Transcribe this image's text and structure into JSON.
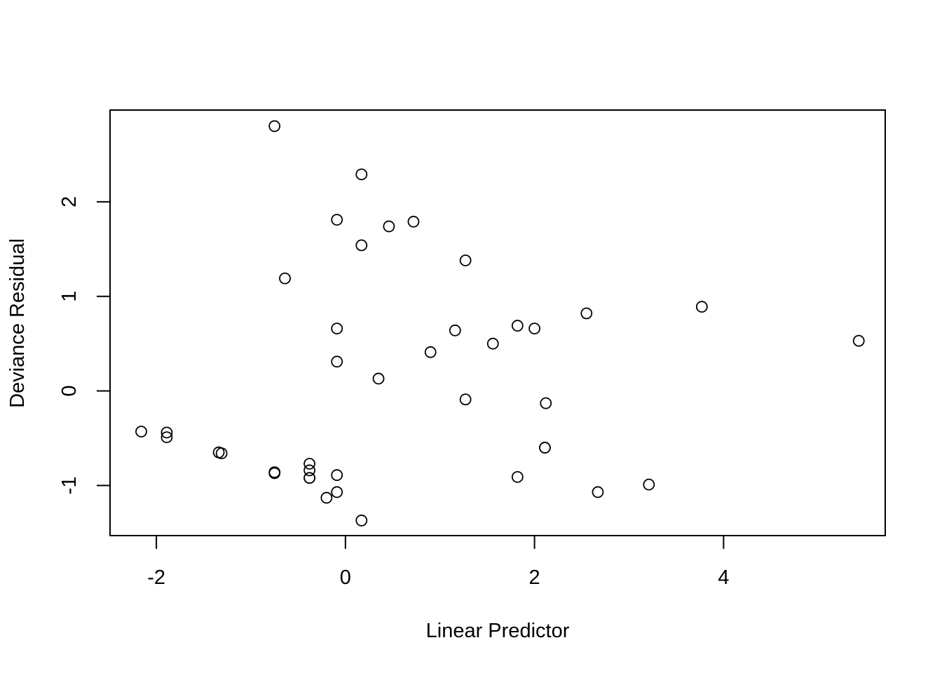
{
  "chart_data": {
    "type": "scatter",
    "title": "",
    "xlabel": "Linear Predictor",
    "ylabel": "Deviance Residual",
    "xlim": [
      -2.49,
      5.71
    ],
    "ylim": [
      -1.53,
      2.97
    ],
    "xticks": [
      {
        "value": -2,
        "label": "-2"
      },
      {
        "value": 0,
        "label": "0"
      },
      {
        "value": 2,
        "label": "2"
      },
      {
        "value": 4,
        "label": "4"
      }
    ],
    "yticks": [
      {
        "value": -1,
        "label": "-1"
      },
      {
        "value": 0,
        "label": "0"
      },
      {
        "value": 1,
        "label": "1"
      },
      {
        "value": 2,
        "label": "2"
      }
    ],
    "grid": false,
    "legend": null,
    "marker": "open-circle",
    "colors": {
      "point": "#000000",
      "axis": "#000000",
      "background": "#ffffff"
    },
    "points": [
      {
        "x": -0.75,
        "y": 2.8
      },
      {
        "x": 0.17,
        "y": 2.29
      },
      {
        "x": -0.09,
        "y": 1.81
      },
      {
        "x": 0.46,
        "y": 1.74
      },
      {
        "x": 0.72,
        "y": 1.79
      },
      {
        "x": 0.17,
        "y": 1.54
      },
      {
        "x": 1.27,
        "y": 1.38
      },
      {
        "x": -0.64,
        "y": 1.19
      },
      {
        "x": 3.77,
        "y": 0.89
      },
      {
        "x": 2.55,
        "y": 0.82
      },
      {
        "x": 1.82,
        "y": 0.69
      },
      {
        "x": 2.0,
        "y": 0.66
      },
      {
        "x": -0.09,
        "y": 0.66
      },
      {
        "x": 1.16,
        "y": 0.64
      },
      {
        "x": 5.43,
        "y": 0.53
      },
      {
        "x": 1.56,
        "y": 0.5
      },
      {
        "x": 0.9,
        "y": 0.41
      },
      {
        "x": -0.09,
        "y": 0.31
      },
      {
        "x": 0.35,
        "y": 0.13
      },
      {
        "x": 1.27,
        "y": -0.09
      },
      {
        "x": 2.12,
        "y": -0.13
      },
      {
        "x": -2.16,
        "y": -0.43
      },
      {
        "x": -1.89,
        "y": -0.44
      },
      {
        "x": -1.89,
        "y": -0.49
      },
      {
        "x": -1.34,
        "y": -0.65
      },
      {
        "x": -1.31,
        "y": -0.66
      },
      {
        "x": 2.11,
        "y": -0.6
      },
      {
        "x": 2.11,
        "y": -0.6
      },
      {
        "x": -0.38,
        "y": -0.77
      },
      {
        "x": -0.38,
        "y": -0.84
      },
      {
        "x": -0.75,
        "y": -0.86
      },
      {
        "x": -0.75,
        "y": -0.87
      },
      {
        "x": -0.38,
        "y": -0.92
      },
      {
        "x": -0.38,
        "y": -0.92
      },
      {
        "x": -0.09,
        "y": -0.89
      },
      {
        "x": 1.82,
        "y": -0.91
      },
      {
        "x": 3.21,
        "y": -0.99
      },
      {
        "x": -0.09,
        "y": -1.07
      },
      {
        "x": 2.67,
        "y": -1.07
      },
      {
        "x": -0.2,
        "y": -1.13
      },
      {
        "x": 0.17,
        "y": -1.37
      }
    ]
  }
}
